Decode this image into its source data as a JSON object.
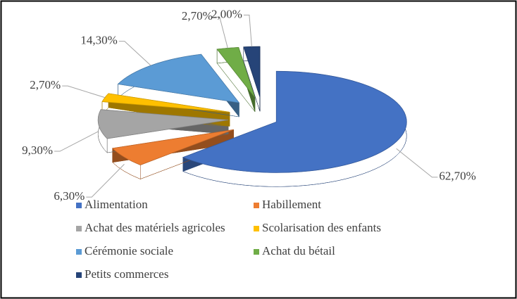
{
  "chart_data": {
    "type": "pie",
    "categories": [
      "Alimentation",
      "Habillement",
      "Achat des matériels agricoles",
      "Scolarisation des enfants",
      "Cérémonie sociale",
      "Achat du bétail",
      "Petits commerces"
    ],
    "values": [
      62.7,
      6.3,
      9.3,
      2.7,
      14.3,
      2.7,
      2.0
    ],
    "value_labels": [
      "62,70%",
      "6,30%",
      "9,30%",
      "2,70%",
      "14,30%",
      "2,70%",
      "2,00%"
    ],
    "colors": [
      "#4472c4",
      "#ed7d31",
      "#a5a5a5",
      "#ffc000",
      "#5b9bd5",
      "#70ad47",
      "#264478"
    ],
    "legend": "bottom"
  }
}
